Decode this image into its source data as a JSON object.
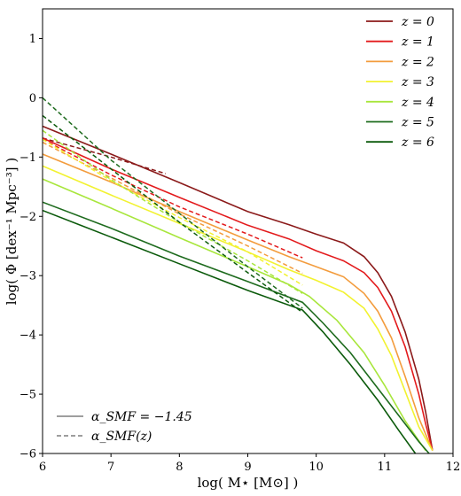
{
  "chart_data": {
    "type": "line",
    "title": "",
    "xlabel": "log( M⋆ [M⊙] )",
    "ylabel": "log( Φ [dex⁻¹ Mpc⁻³] )",
    "xlim": [
      6,
      12
    ],
    "ylim": [
      -6,
      1.5
    ],
    "xticks": [
      "6",
      "7",
      "8",
      "9",
      "10",
      "11",
      "12"
    ],
    "yticks": [
      "1",
      "0",
      "−1",
      "−2",
      "−3",
      "−4",
      "−5",
      "−6"
    ],
    "grid": false,
    "legend_redshift_position": "top-right",
    "legend_style_position": "bottom-left",
    "style_legend": [
      {
        "label": "α_SMF = −1.45",
        "style": "solid",
        "color": "#7f7f7f"
      },
      {
        "label": "α_SMF(z)",
        "style": "dashed",
        "color": "#7f7f7f"
      }
    ],
    "series": [
      {
        "name": "z = 0",
        "color": "#8b1a1a",
        "solid_x": [
          6,
          7,
          8,
          9,
          9.6,
          10,
          10.4,
          10.7,
          10.9,
          11.1,
          11.3,
          11.5,
          11.6,
          11.7
        ],
        "solid_y": [
          -0.48,
          -0.95,
          -1.43,
          -1.92,
          -2.14,
          -2.3,
          -2.45,
          -2.68,
          -2.95,
          -3.35,
          -3.95,
          -4.75,
          -5.3,
          -5.95
        ],
        "dashed_x": [
          6,
          7,
          7.8
        ],
        "dashed_y": [
          -0.68,
          -1.0,
          -1.28
        ]
      },
      {
        "name": "z = 1",
        "color": "#e31a1c",
        "solid_x": [
          6,
          7,
          8,
          9,
          9.6,
          10,
          10.4,
          10.7,
          10.9,
          11.1,
          11.3,
          11.5,
          11.6,
          11.7
        ],
        "solid_y": [
          -0.68,
          -1.2,
          -1.68,
          -2.15,
          -2.38,
          -2.58,
          -2.75,
          -2.95,
          -3.2,
          -3.6,
          -4.2,
          -5.0,
          -5.5,
          -5.95
        ],
        "dashed_x": [
          6,
          7,
          8,
          9,
          9.8
        ],
        "dashed_y": [
          -0.7,
          -1.3,
          -1.84,
          -2.3,
          -2.7
        ]
      },
      {
        "name": "z = 2",
        "color": "#f39c3d",
        "solid_x": [
          6,
          7,
          8,
          9,
          9.6,
          10,
          10.4,
          10.7,
          10.9,
          11.1,
          11.3,
          11.5,
          11.7
        ],
        "solid_y": [
          -0.95,
          -1.42,
          -1.92,
          -2.4,
          -2.68,
          -2.85,
          -3.02,
          -3.3,
          -3.6,
          -4.05,
          -4.7,
          -5.4,
          -5.95
        ],
        "dashed_x": [
          6,
          7,
          8,
          9,
          9.8
        ],
        "dashed_y": [
          -0.75,
          -1.35,
          -1.96,
          -2.5,
          -2.96
        ]
      },
      {
        "name": "z = 3",
        "color": "#f2f230",
        "solid_x": [
          6,
          7,
          8,
          9,
          9.6,
          10,
          10.4,
          10.7,
          10.9,
          11.1,
          11.3,
          11.5,
          11.7
        ],
        "solid_y": [
          -1.15,
          -1.64,
          -2.12,
          -2.6,
          -2.9,
          -3.08,
          -3.28,
          -3.55,
          -3.9,
          -4.35,
          -4.95,
          -5.55,
          -5.95
        ],
        "dashed_x": [
          6,
          7,
          8,
          9,
          9.8
        ],
        "dashed_y": [
          -0.7,
          -1.4,
          -2.02,
          -2.6,
          -3.16
        ]
      },
      {
        "name": "z = 4",
        "color": "#a8e63c",
        "solid_x": [
          6,
          7,
          8,
          9,
          9.6,
          9.9,
          10.3,
          10.7,
          11.0,
          11.3,
          11.6
        ],
        "solid_y": [
          -1.37,
          -1.86,
          -2.36,
          -2.85,
          -3.15,
          -3.35,
          -3.75,
          -4.3,
          -4.85,
          -5.45,
          -5.95
        ],
        "dashed_x": [
          6,
          7,
          8,
          9,
          9.8
        ],
        "dashed_y": [
          -0.55,
          -1.38,
          -2.1,
          -2.75,
          -3.3
        ]
      },
      {
        "name": "z = 5",
        "color": "#1e6b1e",
        "solid_x": [
          6,
          7,
          8,
          9,
          9.8,
          10.1,
          10.5,
          10.9,
          11.2,
          11.5,
          11.65
        ],
        "solid_y": [
          -1.76,
          -2.2,
          -2.67,
          -3.1,
          -3.45,
          -3.8,
          -4.3,
          -4.9,
          -5.35,
          -5.8,
          -6.0
        ],
        "dashed_x": [
          6,
          7,
          8,
          9,
          9.8
        ],
        "dashed_y": [
          0.0,
          -1.05,
          -1.95,
          -2.85,
          -3.55
        ]
      },
      {
        "name": "z = 6",
        "color": "#0b5a0b",
        "solid_x": [
          6,
          7,
          8,
          9,
          9.8,
          10.1,
          10.5,
          10.9,
          11.2,
          11.45
        ],
        "solid_y": [
          -1.9,
          -2.35,
          -2.8,
          -3.25,
          -3.58,
          -3.95,
          -4.5,
          -5.1,
          -5.6,
          -6.0
        ],
        "dashed_x": [
          6,
          7,
          8,
          9,
          9.8
        ],
        "dashed_y": [
          -0.3,
          -1.2,
          -2.1,
          -2.95,
          -3.62
        ]
      }
    ]
  }
}
